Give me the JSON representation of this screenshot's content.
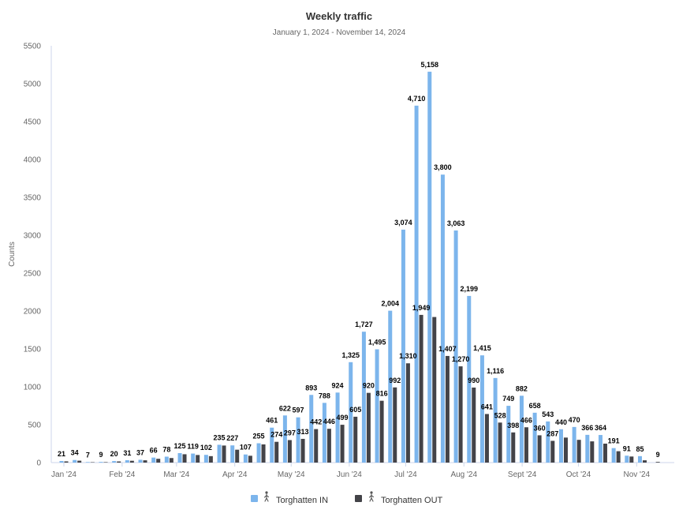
{
  "chart_data": {
    "type": "bar",
    "title": "Weekly traffic",
    "subtitle": "January 1, 2024 - November 14, 2024",
    "ylabel": "Counts",
    "xlabel": "",
    "ylim": [
      0,
      5500
    ],
    "yticks": [
      0,
      500,
      1000,
      1500,
      2000,
      2500,
      3000,
      3500,
      4000,
      4500,
      5000,
      5500
    ],
    "grid": false,
    "legend_position": "bottom-center",
    "x_tick_labels": [
      {
        "label": "Jan '24",
        "week": 0
      },
      {
        "label": "Feb '24",
        "week": 4.43
      },
      {
        "label": "Mar '24",
        "week": 8.57
      },
      {
        "label": "Apr '24",
        "week": 13
      },
      {
        "label": "May '24",
        "week": 17.29
      },
      {
        "label": "Jun '24",
        "week": 21.71
      },
      {
        "label": "Jul '24",
        "week": 26
      },
      {
        "label": "Aug '24",
        "week": 30.43
      },
      {
        "label": "Sept '24",
        "week": 34.86
      },
      {
        "label": "Oct '24",
        "week": 39.14
      },
      {
        "label": "Nov '24",
        "week": 43.57
      }
    ],
    "series": [
      {
        "name": "Torghatten IN",
        "color": "#7cb5ec",
        "values": [
          21,
          34,
          7,
          9,
          20,
          31,
          37,
          66,
          78,
          125,
          119,
          102,
          235,
          227,
          107,
          255,
          461,
          622,
          597,
          893,
          788,
          924,
          1325,
          1727,
          1495,
          2004,
          3074,
          4710,
          5158,
          3800,
          3063,
          2199,
          1415,
          1116,
          749,
          882,
          658,
          543,
          440,
          470,
          366,
          364,
          191,
          91,
          85,
          null
        ]
      },
      {
        "name": "Torghatten OUT",
        "color": "#434348",
        "values": [
          16,
          25,
          5,
          6,
          15,
          24,
          30,
          50,
          60,
          110,
          100,
          85,
          225,
          170,
          90,
          240,
          274,
          297,
          313,
          442,
          446,
          499,
          605,
          920,
          816,
          992,
          1310,
          1949,
          1921,
          1407,
          1270,
          990,
          641,
          528,
          398,
          466,
          360,
          287,
          330,
          300,
          280,
          250,
          150,
          80,
          30,
          9
        ]
      }
    ],
    "data_labels": [
      {
        "value": "21",
        "series": 0,
        "week": 0
      },
      {
        "value": "34",
        "series": 0,
        "week": 1
      },
      {
        "value": "7",
        "series": 0,
        "week": 2
      },
      {
        "value": "9",
        "series": 0,
        "week": 3
      },
      {
        "value": "20",
        "series": 0,
        "week": 4
      },
      {
        "value": "31",
        "series": 0,
        "week": 5
      },
      {
        "value": "37",
        "series": 0,
        "week": 6
      },
      {
        "value": "66",
        "series": 0,
        "week": 7
      },
      {
        "value": "78",
        "series": 0,
        "week": 8
      },
      {
        "value": "125",
        "series": 0,
        "week": 9
      },
      {
        "value": "119",
        "series": 0,
        "week": 10
      },
      {
        "value": "102",
        "series": 0,
        "week": 11
      },
      {
        "value": "235",
        "series": 0,
        "week": 12
      },
      {
        "value": "227",
        "series": 0,
        "week": 13
      },
      {
        "value": "107",
        "series": 0,
        "week": 14
      },
      {
        "value": "255",
        "series": 0,
        "week": 15
      },
      {
        "value": "461",
        "series": 0,
        "week": 16
      },
      {
        "value": "274",
        "series": 1,
        "week": 16
      },
      {
        "value": "622",
        "series": 0,
        "week": 17
      },
      {
        "value": "297",
        "series": 1,
        "week": 17
      },
      {
        "value": "597",
        "series": 0,
        "week": 18
      },
      {
        "value": "313",
        "series": 1,
        "week": 18
      },
      {
        "value": "893",
        "series": 0,
        "week": 19
      },
      {
        "value": "442",
        "series": 1,
        "week": 19
      },
      {
        "value": "788",
        "series": 0,
        "week": 20
      },
      {
        "value": "446",
        "series": 1,
        "week": 20
      },
      {
        "value": "924",
        "series": 0,
        "week": 21
      },
      {
        "value": "499",
        "series": 1,
        "week": 21
      },
      {
        "value": "1,325",
        "series": 0,
        "week": 22
      },
      {
        "value": "605",
        "series": 1,
        "week": 22
      },
      {
        "value": "1,727",
        "series": 0,
        "week": 23
      },
      {
        "value": "920",
        "series": 1,
        "week": 23
      },
      {
        "value": "1,495",
        "series": 0,
        "week": 24
      },
      {
        "value": "816",
        "series": 1,
        "week": 24
      },
      {
        "value": "2,004",
        "series": 0,
        "week": 25
      },
      {
        "value": "992",
        "series": 1,
        "week": 25
      },
      {
        "value": "3,074",
        "series": 0,
        "week": 26
      },
      {
        "value": "1,310",
        "series": 1,
        "week": 26
      },
      {
        "value": "4,710",
        "series": 0,
        "week": 27
      },
      {
        "value": "1,949",
        "series": 1,
        "week": 27
      },
      {
        "value": "5,158",
        "series": 0,
        "week": 28
      },
      {
        "value": "3,800",
        "series": 0,
        "week": 29
      },
      {
        "value": "1,407",
        "series": 1,
        "week": 29
      },
      {
        "value": "3,063",
        "series": 0,
        "week": 30
      },
      {
        "value": "1,270",
        "series": 1,
        "week": 30
      },
      {
        "value": "2,199",
        "series": 0,
        "week": 31
      },
      {
        "value": "990",
        "series": 1,
        "week": 31
      },
      {
        "value": "1,415",
        "series": 0,
        "week": 32
      },
      {
        "value": "641",
        "series": 1,
        "week": 32
      },
      {
        "value": "1,116",
        "series": 0,
        "week": 33
      },
      {
        "value": "528",
        "series": 1,
        "week": 33
      },
      {
        "value": "749",
        "series": 0,
        "week": 34
      },
      {
        "value": "398",
        "series": 1,
        "week": 34
      },
      {
        "value": "882",
        "series": 0,
        "week": 35
      },
      {
        "value": "466",
        "series": 1,
        "week": 35
      },
      {
        "value": "658",
        "series": 0,
        "week": 36
      },
      {
        "value": "360",
        "series": 1,
        "week": 36
      },
      {
        "value": "543",
        "series": 0,
        "week": 37
      },
      {
        "value": "287",
        "series": 1,
        "week": 37
      },
      {
        "value": "440",
        "series": 0,
        "week": 38
      },
      {
        "value": "470",
        "series": 0,
        "week": 39
      },
      {
        "value": "366",
        "series": 0,
        "week": 40
      },
      {
        "value": "364",
        "series": 0,
        "week": 41
      },
      {
        "value": "191",
        "series": 0,
        "week": 42
      },
      {
        "value": "91",
        "series": 0,
        "week": 43
      },
      {
        "value": "85",
        "series": 0,
        "week": 44
      },
      {
        "value": "9",
        "series": 1,
        "week": 45
      }
    ]
  }
}
